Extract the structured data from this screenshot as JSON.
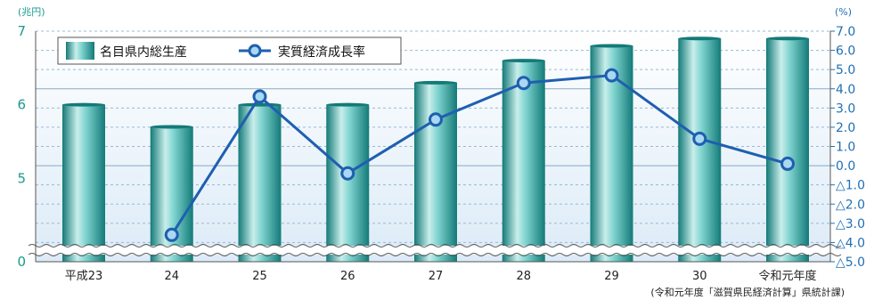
{
  "chart_data": {
    "type": "bar+line",
    "categories": [
      "平成23",
      "24",
      "25",
      "26",
      "27",
      "28",
      "29",
      "30",
      "令和元年度"
    ],
    "series": [
      {
        "name": "名目県内総生産",
        "kind": "bar",
        "axis": "left",
        "values": [
          6.0,
          5.7,
          6.0,
          6.0,
          6.3,
          6.6,
          6.8,
          6.9,
          6.9
        ]
      },
      {
        "name": "実質経済成長率",
        "kind": "line",
        "axis": "right",
        "values": [
          null,
          -3.6,
          3.6,
          -0.4,
          2.4,
          4.3,
          4.7,
          1.4,
          0.1
        ]
      }
    ],
    "left_axis": {
      "unit": "(兆円)",
      "ticks": [
        "7",
        "6",
        "5",
        "0"
      ],
      "tick_values": [
        7,
        6,
        5,
        0
      ],
      "ylim": [
        4,
        7
      ],
      "broken": true
    },
    "right_axis": {
      "unit": "(%)",
      "ticks": [
        "7.0",
        "6.0",
        "5.0",
        "4.0",
        "3.0",
        "2.0",
        "1.0",
        "0.0",
        "△1.0",
        "△2.0",
        "△3.0",
        "△4.0",
        "△5.0"
      ],
      "tick_values": [
        7,
        6,
        5,
        4,
        3,
        2,
        1,
        0,
        -1,
        -2,
        -3,
        -4,
        -5
      ],
      "ylim": [
        -5,
        7
      ]
    },
    "legend_position": "top-left",
    "source": "(令和元年度「滋賀県民経済計算」県統計課)",
    "colors": {
      "bar_mid": "#3fb3ad",
      "bar_light": "#c9eeeb",
      "bar_dark": "#137a78",
      "line": "#1f5fb0",
      "marker_fill": "#a9d8f2",
      "left_axis_text": "#1a9a8c",
      "right_axis_text": "#1f6fb5"
    }
  }
}
